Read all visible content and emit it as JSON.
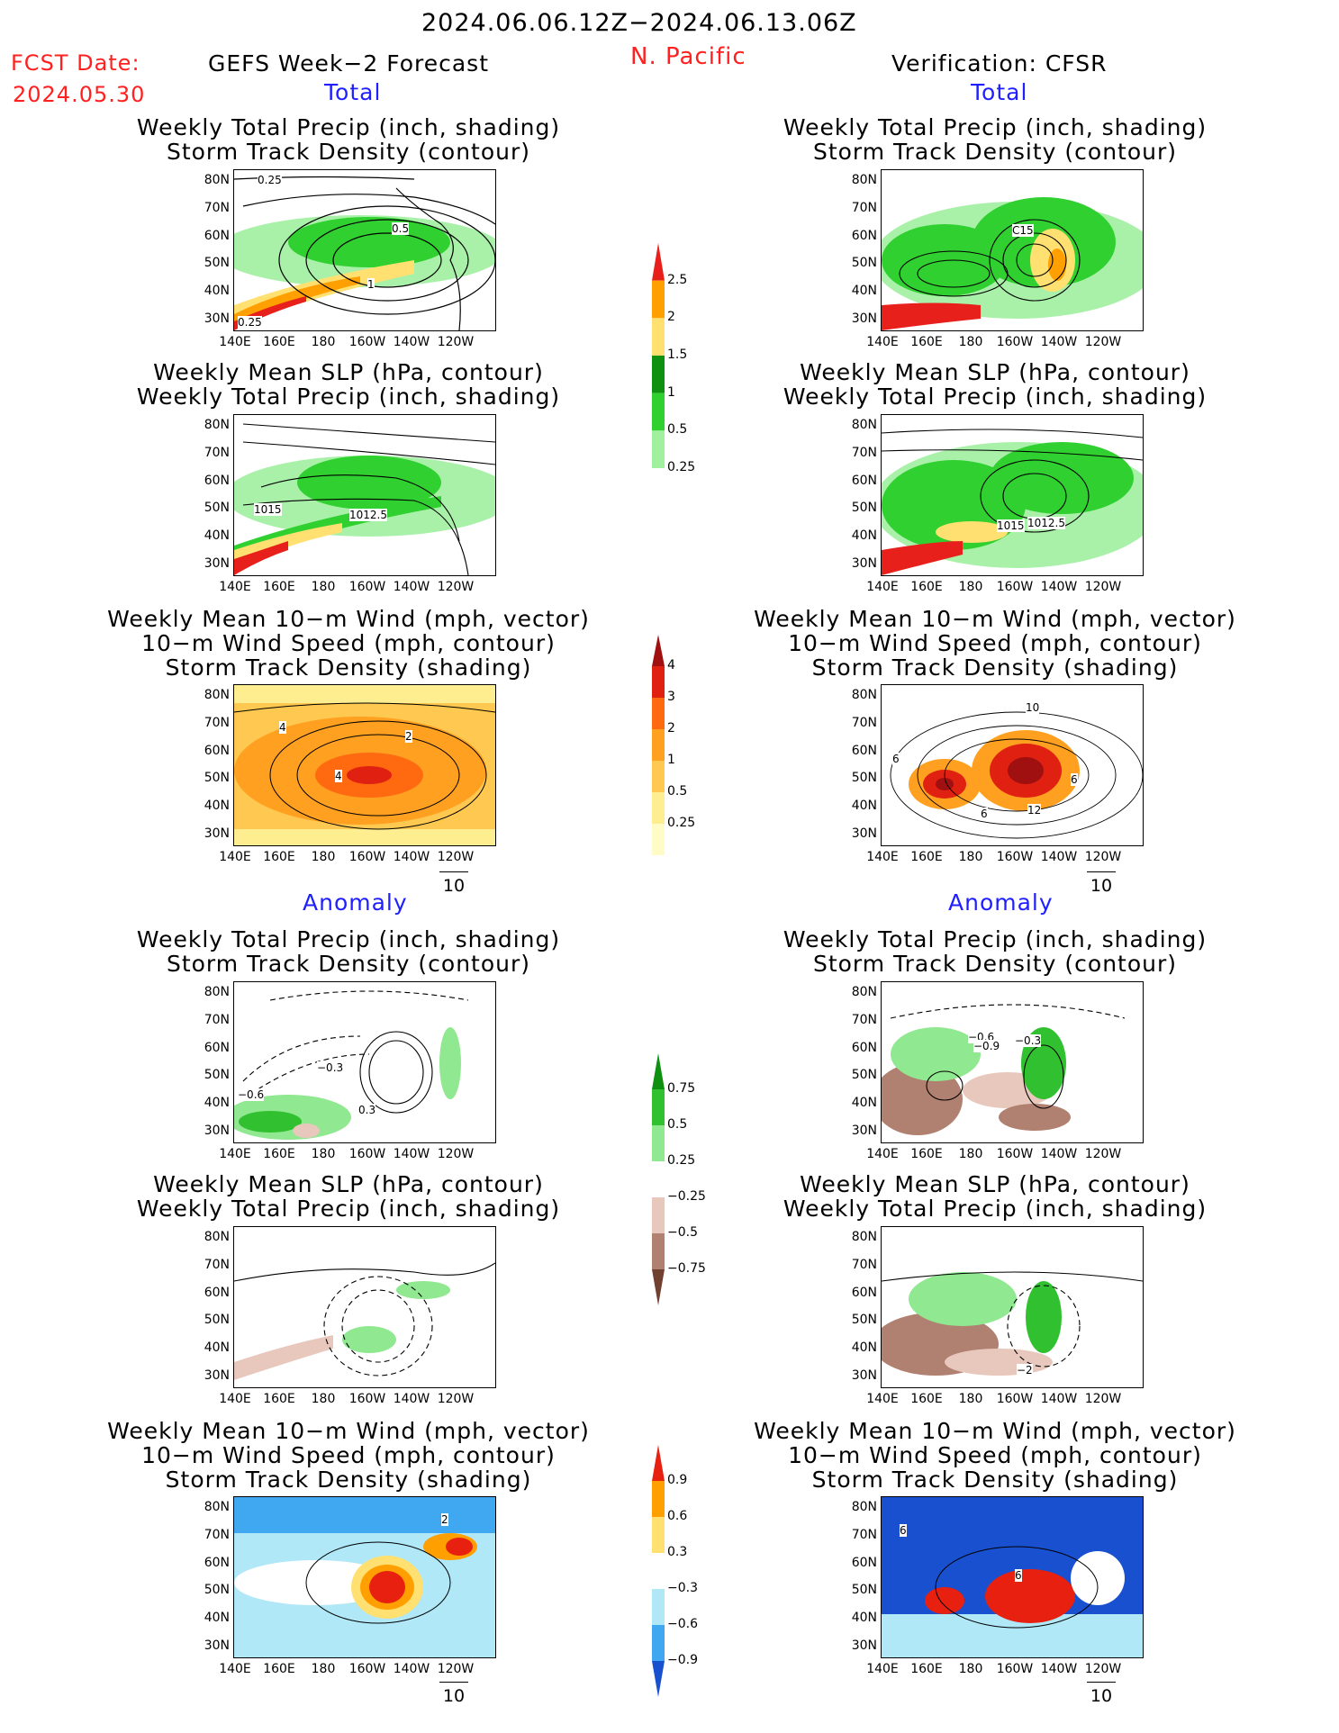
{
  "header": {
    "date_range": "2024.06.06.12Z−2024.06.13.06Z",
    "fcst_date_label": "FCST Date:",
    "fcst_date_value": "2024.05.30",
    "left_title": "GEFS Week−2 Forecast",
    "region": "N. Pacific",
    "right_title": "Verification: CFSR"
  },
  "sections": {
    "total": "Total",
    "anomaly": "Anomaly"
  },
  "panel_titles": {
    "precip_storm": [
      "Weekly Total Precip (inch, shading)",
      "Storm Track Density (contour)"
    ],
    "slp_precip": [
      "Weekly Mean SLP (hPa, contour)",
      "Weekly Total Precip (inch, shading)"
    ],
    "wind_storm": [
      "Weekly Mean 10−m Wind (mph, vector)",
      "10−m Wind Speed (mph, contour)",
      "Storm Track Density (shading)"
    ]
  },
  "axes": {
    "y_ticks": [
      "80N",
      "70N",
      "60N",
      "50N",
      "40N",
      "30N"
    ],
    "x_ticks": [
      "140E",
      "160E",
      "180",
      "160W",
      "140W",
      "120W"
    ]
  },
  "vector_ref": "10",
  "colorbars": {
    "precip_total": {
      "labels": [
        "2.5",
        "2",
        "1.5",
        "1",
        "0.5",
        "0.25"
      ],
      "colors": [
        "#e8201c",
        "#ffa000",
        "#ffe070",
        "#109010",
        "#30d030",
        "#a0f0a0"
      ]
    },
    "storm_total": {
      "labels": [
        "4",
        "3",
        "2",
        "1",
        "0.5",
        "0.25"
      ],
      "colors": [
        "#a01010",
        "#e02010",
        "#ff6a10",
        "#ffa020",
        "#ffc850",
        "#ffee90",
        "#fffcc8"
      ]
    },
    "precip_anom": {
      "labels": [
        "0.75",
        "0.5",
        "0.25",
        "−0.25",
        "−0.5",
        "−0.75"
      ],
      "colors": [
        "#109010",
        "#30c030",
        "#90e890",
        "#ffffff",
        "#e8c8bc",
        "#b08070",
        "#704030"
      ]
    },
    "storm_anom": {
      "labels": [
        "0.9",
        "0.6",
        "0.3",
        "−0.3",
        "−0.6",
        "−0.9"
      ],
      "colors": [
        "#e82010",
        "#ffa000",
        "#ffe070",
        "#ffffff",
        "#b0e8f8",
        "#40a8f0",
        "#1850d0"
      ]
    }
  },
  "contour_labels": {
    "t1": [
      "0.25",
      "0.5",
      "1",
      "0.25"
    ],
    "t2": [
      "1015",
      "1012.5"
    ],
    "t3": [
      "4",
      "2",
      "4"
    ],
    "t4": [
      "C15"
    ],
    "t5": [
      "1015",
      "1012.5"
    ],
    "t6": [
      "10",
      "6",
      "6",
      "12",
      "6"
    ],
    "a1": [
      "−0.6",
      "−0.3",
      "0.3"
    ],
    "a3": [
      "2"
    ],
    "a4": [
      "−0.6",
      "−0.9",
      "−0.3"
    ],
    "a5": [
      "−2"
    ],
    "a6": [
      "6",
      "6"
    ]
  }
}
